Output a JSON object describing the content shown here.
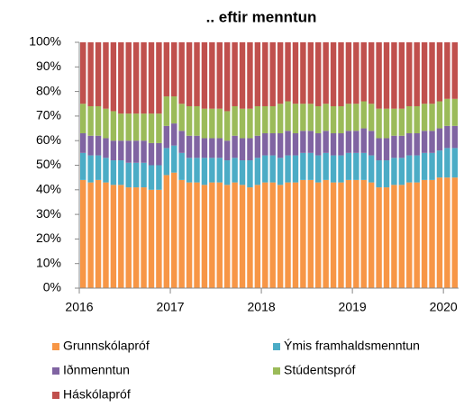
{
  "chart_data": {
    "type": "stacked_bar",
    "title": ".. eftir menntun",
    "categories": [
      "2016",
      null,
      null,
      null,
      null,
      null,
      null,
      null,
      null,
      null,
      null,
      null,
      "2017",
      null,
      null,
      null,
      null,
      null,
      null,
      null,
      null,
      null,
      null,
      null,
      "2018",
      null,
      null,
      null,
      null,
      null,
      null,
      null,
      null,
      null,
      null,
      null,
      "2019",
      null,
      null,
      null,
      null,
      null,
      null,
      null,
      null,
      null,
      null,
      null,
      "2020",
      null
    ],
    "series": [
      {
        "name": "Grunnskólapróf",
        "color": "#f79646",
        "values": [
          44,
          43,
          44,
          43,
          42,
          42,
          41,
          41,
          41,
          40,
          40,
          46,
          47,
          44,
          43,
          43,
          42,
          43,
          43,
          42,
          43,
          42,
          41,
          42,
          43,
          43,
          42,
          43,
          43,
          44,
          44,
          43,
          44,
          43,
          43,
          44,
          44,
          44,
          43,
          41,
          41,
          42,
          42,
          43,
          43,
          44,
          44,
          45,
          45,
          45
        ]
      },
      {
        "name": "Ýmis framhaldsmenntun",
        "color": "#4bacc6",
        "values": [
          11,
          11,
          10,
          10,
          10,
          10,
          10,
          10,
          10,
          10,
          10,
          11,
          11,
          11,
          10,
          10,
          11,
          10,
          10,
          10,
          10,
          10,
          11,
          11,
          11,
          11,
          11,
          11,
          11,
          11,
          11,
          11,
          11,
          11,
          11,
          11,
          11,
          11,
          11,
          11,
          11,
          11,
          11,
          11,
          11,
          11,
          11,
          11,
          12,
          12
        ]
      },
      {
        "name": "Iðnmenntun",
        "color": "#8064a2",
        "values": [
          8,
          8,
          8,
          8,
          8,
          8,
          9,
          9,
          9,
          9,
          9,
          9,
          9,
          9,
          9,
          9,
          8,
          8,
          8,
          8,
          9,
          9,
          9,
          9,
          9,
          9,
          10,
          10,
          9,
          9,
          9,
          9,
          9,
          9,
          9,
          9,
          9,
          10,
          10,
          9,
          9,
          9,
          9,
          9,
          9,
          9,
          9,
          9,
          9,
          9
        ]
      },
      {
        "name": "Stúdentspróf",
        "color": "#9bbb59",
        "values": [
          12,
          12,
          12,
          12,
          12,
          11,
          11,
          11,
          11,
          12,
          12,
          12,
          11,
          11,
          12,
          12,
          12,
          12,
          12,
          12,
          12,
          12,
          12,
          12,
          11,
          11,
          12,
          12,
          12,
          11,
          11,
          11,
          11,
          11,
          11,
          11,
          11,
          11,
          11,
          12,
          12,
          11,
          11,
          11,
          11,
          11,
          11,
          11,
          11,
          11
        ]
      },
      {
        "name": "Háskólapróf",
        "color": "#c0504d",
        "values": [
          25,
          26,
          26,
          27,
          28,
          29,
          29,
          29,
          29,
          29,
          29,
          22,
          22,
          25,
          26,
          26,
          27,
          27,
          27,
          28,
          26,
          27,
          27,
          26,
          26,
          26,
          25,
          24,
          25,
          25,
          25,
          26,
          25,
          26,
          26,
          25,
          25,
          24,
          25,
          27,
          27,
          27,
          27,
          26,
          26,
          25,
          25,
          24,
          23,
          23
        ]
      }
    ],
    "ylim": [
      0,
      100
    ],
    "yticks": [
      {
        "value": 0,
        "label": "0%"
      },
      {
        "value": 10,
        "label": "10%"
      },
      {
        "value": 20,
        "label": "20%"
      },
      {
        "value": 30,
        "label": "30%"
      },
      {
        "value": 40,
        "label": "40%"
      },
      {
        "value": 50,
        "label": "50%"
      },
      {
        "value": 60,
        "label": "60%"
      },
      {
        "value": 70,
        "label": "70%"
      },
      {
        "value": 80,
        "label": "80%"
      },
      {
        "value": 90,
        "label": "90%"
      },
      {
        "value": 100,
        "label": "100%"
      }
    ],
    "legend": "bottom"
  }
}
